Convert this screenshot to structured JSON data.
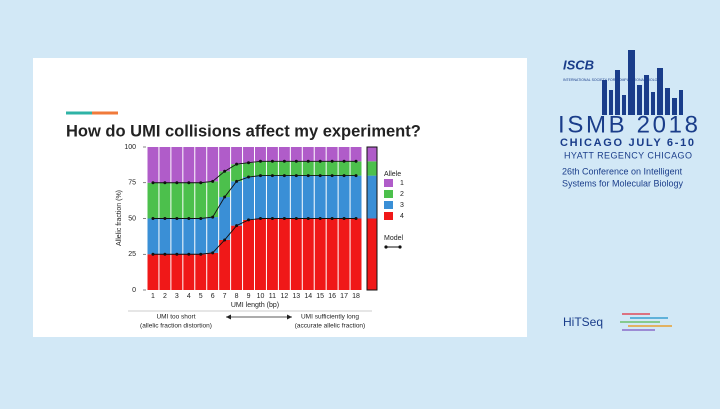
{
  "chart_data": {
    "type": "stacked_bar",
    "title": "How do UMI collisions affect my experiment?",
    "x_label": "UMI length (bp)",
    "y_label": "Allelic fraction (%)",
    "categories": [
      "1",
      "2",
      "3",
      "4",
      "5",
      "6",
      "7",
      "8",
      "9",
      "10",
      "11",
      "12",
      "13",
      "14",
      "15",
      "16",
      "17",
      "18"
    ],
    "ylim": [
      0,
      100
    ],
    "yticks": [
      0,
      25,
      50,
      75,
      100
    ],
    "legend_title": "Allele",
    "model_label": "Model",
    "series": [
      {
        "name": "1",
        "color": "#b05cc9",
        "values": [
          25,
          25,
          25,
          25,
          25,
          24,
          17,
          12,
          11,
          10,
          10,
          10,
          10,
          10,
          10,
          10,
          10,
          10
        ],
        "reference": 10
      },
      {
        "name": "2",
        "color": "#4cc04c",
        "values": [
          25,
          25,
          25,
          25,
          25,
          25,
          18,
          12,
          10,
          10,
          10,
          10,
          10,
          10,
          10,
          10,
          10,
          10
        ],
        "reference": 10
      },
      {
        "name": "3",
        "color": "#3a8fd6",
        "values": [
          25,
          25,
          25,
          25,
          25,
          25,
          30,
          31,
          30,
          30,
          30,
          30,
          30,
          30,
          30,
          30,
          30,
          30
        ],
        "reference": 30
      },
      {
        "name": "4",
        "color": "#f01818",
        "values": [
          25,
          25,
          25,
          25,
          25,
          26,
          35,
          45,
          49,
          50,
          50,
          50,
          50,
          50,
          50,
          50,
          50,
          50
        ],
        "reference": 50
      }
    ],
    "annotations": [
      "UMI too short",
      "(allelic fraction distortion)",
      "UMI sufficiently long",
      "(accurate allelic fraction)"
    ]
  },
  "branding": {
    "society": "ISCB",
    "society_full": "INTERNATIONAL SOCIETY FOR COMPUTATIONAL BIOLOGY",
    "event": "ISMB 2018",
    "place_date": "CHICAGO  JULY 6-10",
    "venue": "HYATT REGENCY CHICAGO",
    "line1": "26th Conference on Intelligent",
    "line2": "Systems for Molecular Biology",
    "track": "HiTSeq"
  }
}
